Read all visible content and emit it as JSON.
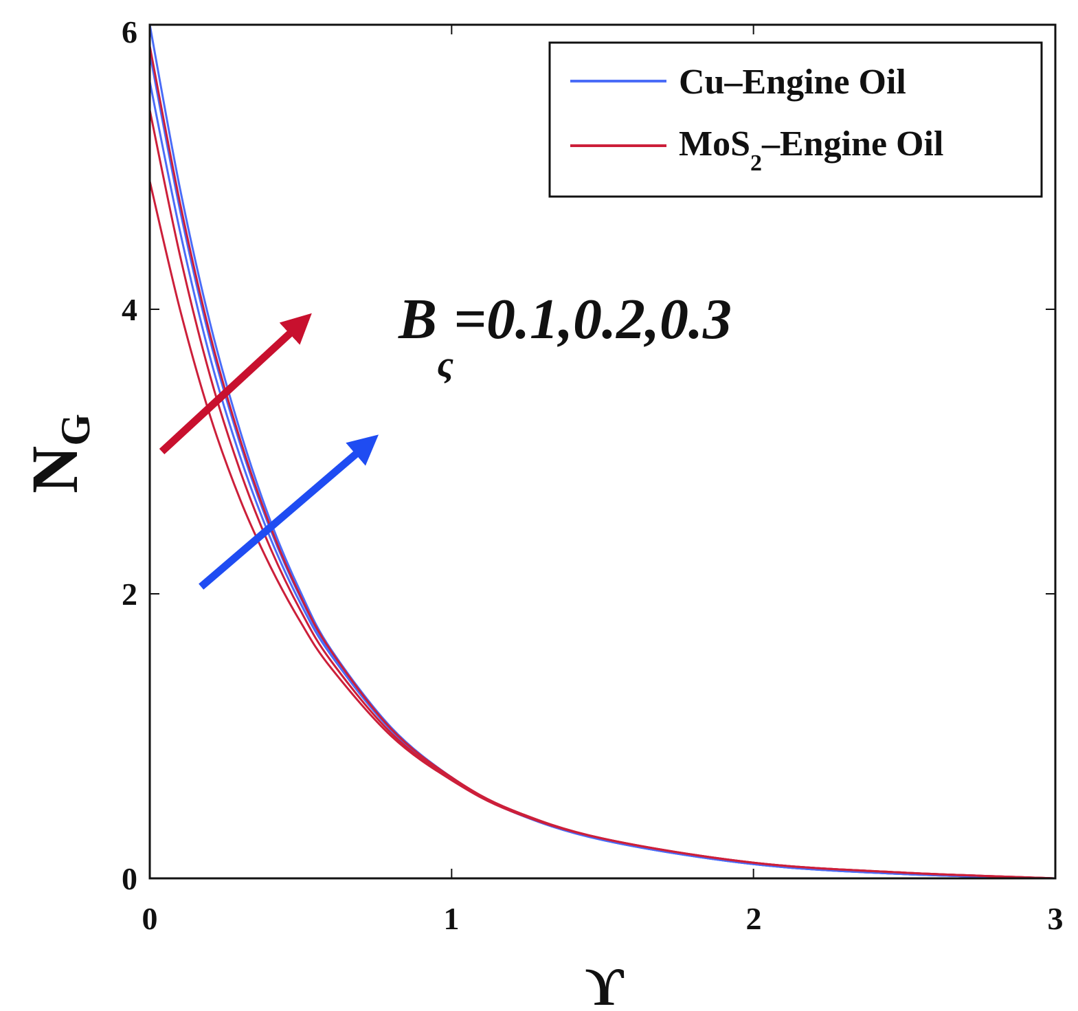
{
  "chart_data": {
    "type": "line",
    "xlabel": "ϒ",
    "ylabel": {
      "main": "N",
      "sub": "G"
    },
    "xlim": [
      0,
      3
    ],
    "ylim": [
      0,
      6
    ],
    "xticks": [
      "0",
      "1",
      "2",
      "3"
    ],
    "yticks": [
      "0",
      "2",
      "4",
      "6"
    ],
    "grid": false,
    "legend_position": "top-right",
    "legend": [
      {
        "label_main": "Cu–Engine Oil",
        "label_sub": "",
        "label_tail": "",
        "color": "#4a6cf7"
      },
      {
        "label_main": "MoS",
        "label_sub": "2",
        "label_tail": "–Engine Oil",
        "color": "#cc1f3a"
      }
    ],
    "annotation": {
      "main": "B",
      "sub": "ς",
      "values": "=0.1,0.2,0.3"
    },
    "x": [
      0.0,
      0.1,
      0.2,
      0.3,
      0.4,
      0.5,
      0.6,
      0.8,
      1.0,
      1.2,
      1.5,
      2.0,
      2.5,
      3.0
    ],
    "series": [
      {
        "family": "Cu–Engine Oil",
        "color": "#4a6cf7",
        "values": [
          5.6,
          4.55,
          3.66,
          2.96,
          2.39,
          1.93,
          1.57,
          1.04,
          0.7,
          0.47,
          0.27,
          0.1,
          0.03,
          0.0
        ]
      },
      {
        "family": "Cu–Engine Oil",
        "color": "#4a6cf7",
        "values": [
          5.8,
          4.7,
          3.78,
          3.05,
          2.45,
          1.97,
          1.59,
          1.05,
          0.7,
          0.47,
          0.27,
          0.1,
          0.03,
          0.0
        ]
      },
      {
        "family": "Cu–Engine Oil",
        "color": "#4a6cf7",
        "values": [
          6.0,
          4.85,
          3.9,
          3.14,
          2.51,
          2.01,
          1.61,
          1.06,
          0.71,
          0.47,
          0.27,
          0.1,
          0.03,
          0.0
        ]
      },
      {
        "family": "MoS2–Engine Oil",
        "color": "#cc1f3a",
        "values": [
          4.9,
          4.0,
          3.25,
          2.66,
          2.19,
          1.8,
          1.48,
          1.0,
          0.69,
          0.47,
          0.28,
          0.11,
          0.04,
          0.0
        ]
      },
      {
        "family": "MoS2–Engine Oil",
        "color": "#cc1f3a",
        "values": [
          5.4,
          4.38,
          3.53,
          2.86,
          2.32,
          1.88,
          1.53,
          1.02,
          0.7,
          0.48,
          0.28,
          0.11,
          0.04,
          0.0
        ]
      },
      {
        "family": "MoS2–Engine Oil",
        "color": "#cc1f3a",
        "values": [
          5.85,
          4.75,
          3.82,
          3.08,
          2.47,
          1.98,
          1.6,
          1.05,
          0.71,
          0.48,
          0.28,
          0.11,
          0.04,
          0.0
        ]
      }
    ],
    "arrows": [
      {
        "color": "#c8102e",
        "from": [
          0.04,
          3.0
        ],
        "to": [
          0.5,
          3.9
        ]
      },
      {
        "color": "#1f4cf2",
        "from": [
          0.17,
          2.05
        ],
        "to": [
          0.72,
          3.05
        ]
      }
    ]
  }
}
